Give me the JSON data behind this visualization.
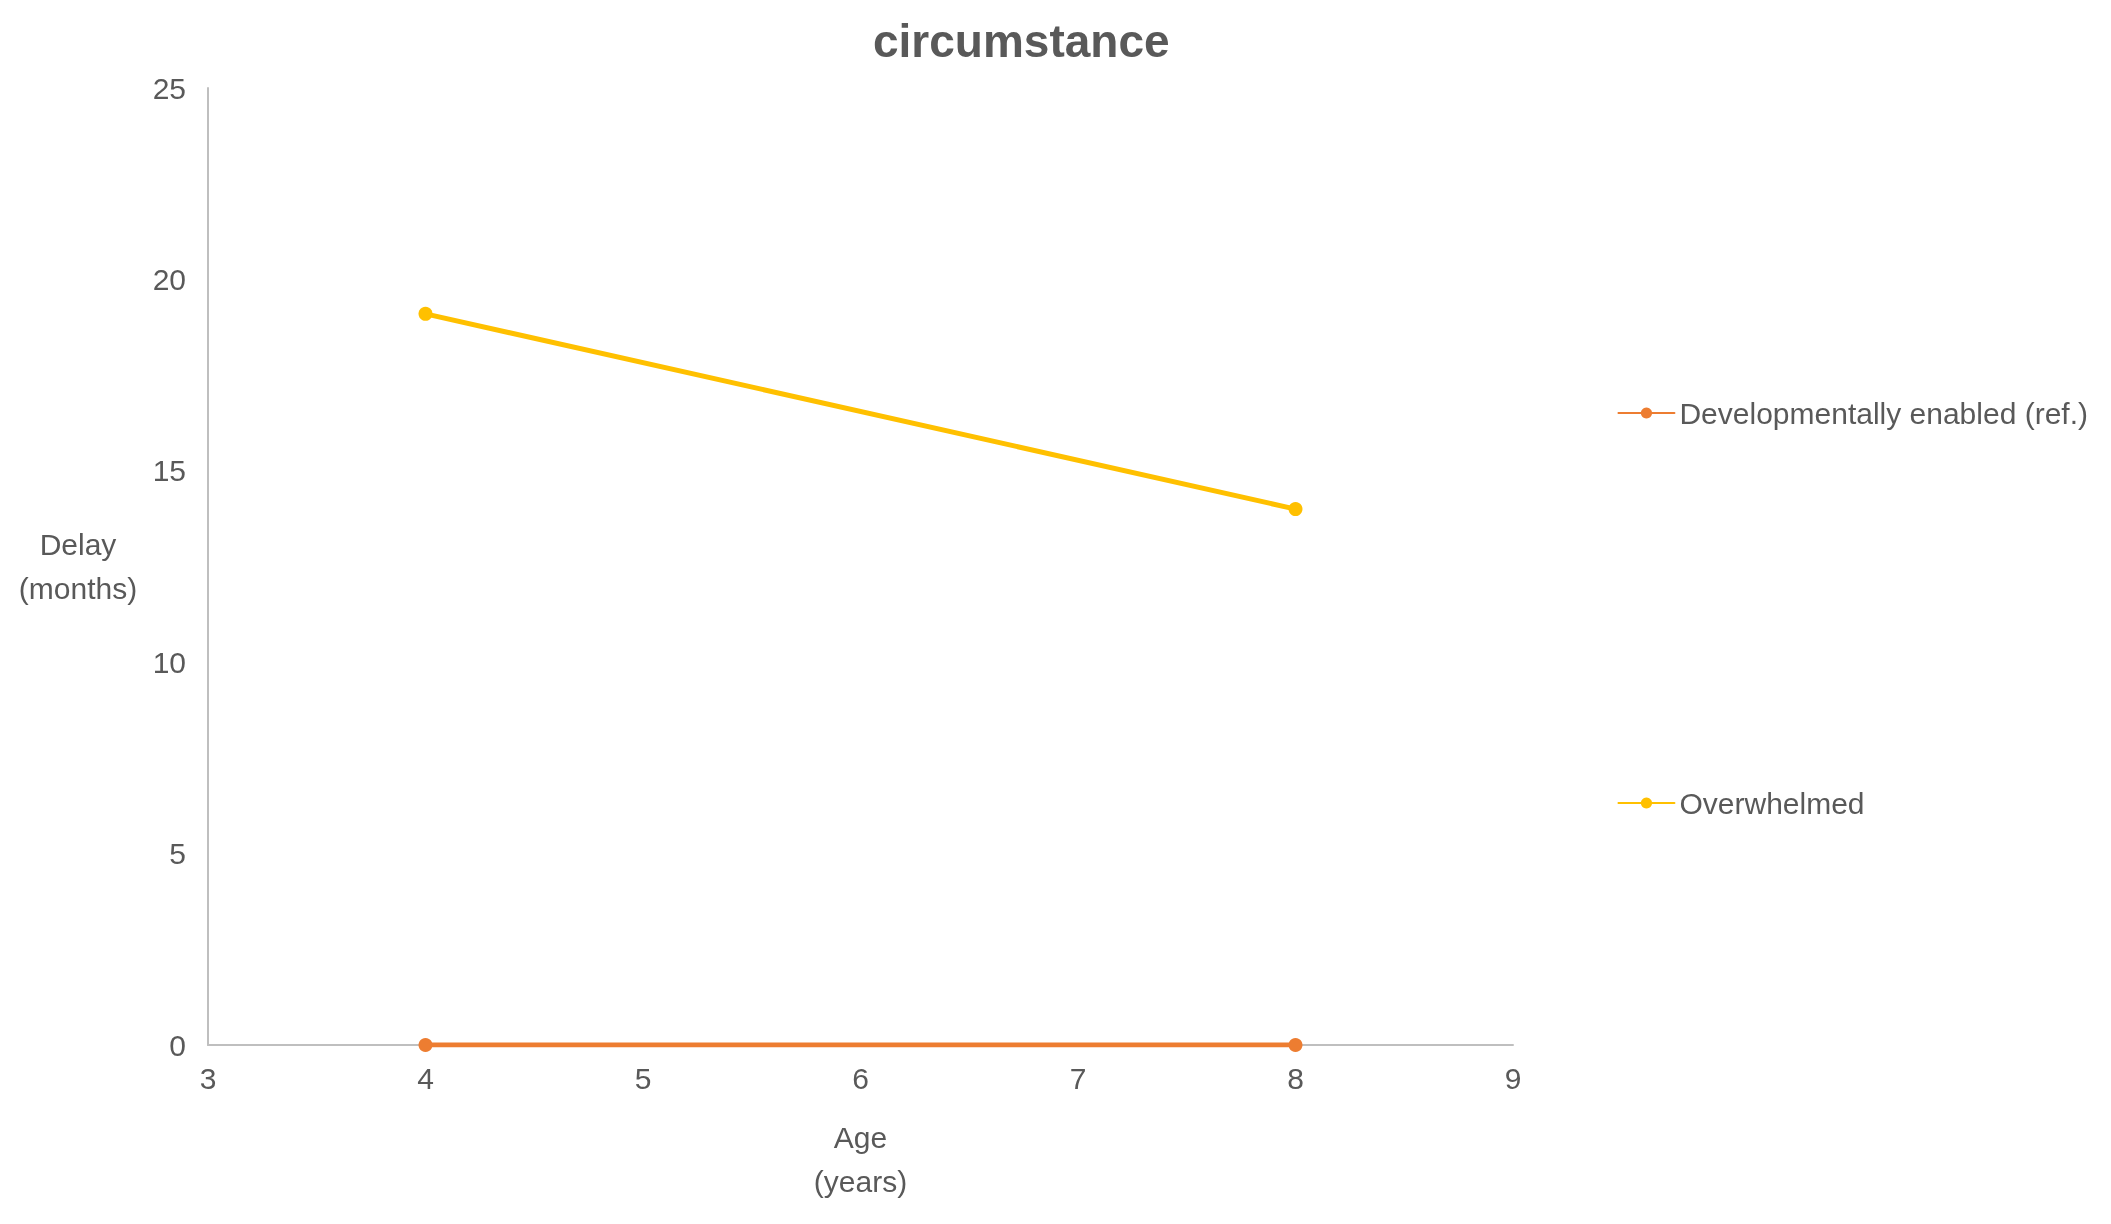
{
  "chart_data": {
    "type": "line",
    "title": "circumstance",
    "xlabel": "Age\n(years)",
    "ylabel": "Delay\n(months)",
    "x": [
      4,
      8
    ],
    "series": [
      {
        "name": "Developmentally enabled (ref.)",
        "color": "#ed7d31",
        "values": [
          0,
          0
        ]
      },
      {
        "name": "Overwhelmed",
        "color": "#ffc000",
        "values": [
          19.1,
          14.0
        ]
      }
    ],
    "xlim": [
      3,
      9
    ],
    "xticks": [
      3,
      4,
      5,
      6,
      7,
      8,
      9
    ],
    "ylim": [
      0,
      25
    ],
    "yticks": [
      0,
      5,
      10,
      15,
      20,
      25
    ],
    "grid": false,
    "legend": "right",
    "marker": "circle",
    "line_style": "solid"
  }
}
